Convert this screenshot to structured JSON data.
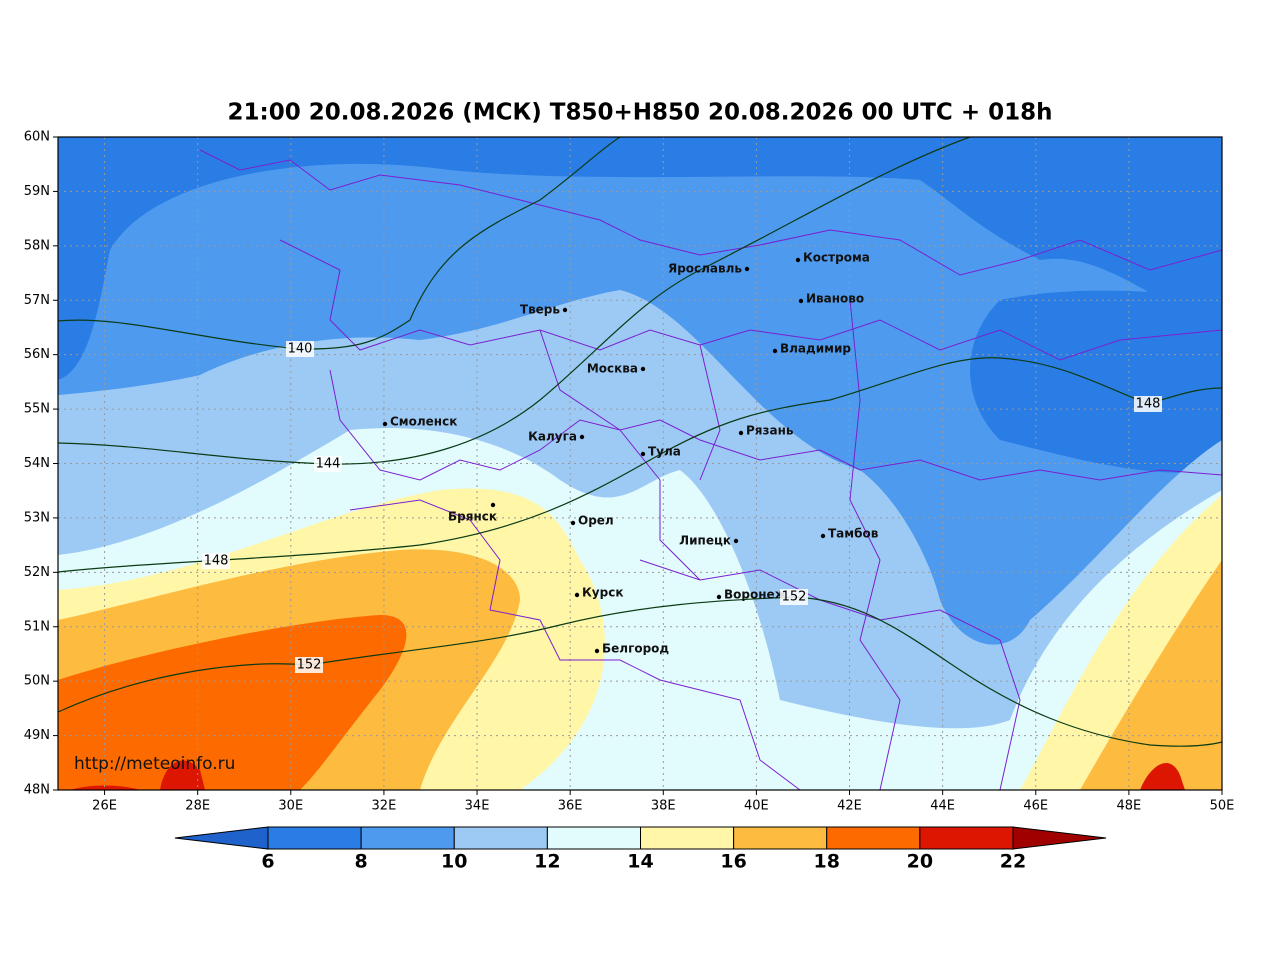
{
  "title": "21:00 20.08.2026 (МСК) T850+H850 20.08.2026 00 UTC + 018h",
  "map": {
    "xlim": [
      25,
      50
    ],
    "ylim": [
      48,
      60
    ],
    "xticks": [
      {
        "value": 26,
        "label": "26E"
      },
      {
        "value": 28,
        "label": "28E"
      },
      {
        "value": 30,
        "label": "30E"
      },
      {
        "value": 32,
        "label": "32E"
      },
      {
        "value": 34,
        "label": "34E"
      },
      {
        "value": 36,
        "label": "36E"
      },
      {
        "value": 38,
        "label": "38E"
      },
      {
        "value": 40,
        "label": "40E"
      },
      {
        "value": 42,
        "label": "42E"
      },
      {
        "value": 44,
        "label": "44E"
      },
      {
        "value": 46,
        "label": "46E"
      },
      {
        "value": 48,
        "label": "48E"
      },
      {
        "value": 50,
        "label": "50E"
      }
    ],
    "yticks": [
      {
        "value": 48,
        "label": "48N"
      },
      {
        "value": 49,
        "label": "49N"
      },
      {
        "value": 50,
        "label": "50N"
      },
      {
        "value": 51,
        "label": "51N"
      },
      {
        "value": 52,
        "label": "52N"
      },
      {
        "value": 53,
        "label": "53N"
      },
      {
        "value": 54,
        "label": "54N"
      },
      {
        "value": 55,
        "label": "55N"
      },
      {
        "value": 56,
        "label": "56N"
      },
      {
        "value": 57,
        "label": "57N"
      },
      {
        "value": 58,
        "label": "58N"
      },
      {
        "value": 59,
        "label": "59N"
      },
      {
        "value": 60,
        "label": "60N"
      }
    ],
    "cities": [
      "Кострома",
      "Ярославль",
      "Иваново",
      "Тверь",
      "Москва",
      "Владимир",
      "Смоленск",
      "Калуга",
      "Рязань",
      "Тула",
      "Брянск",
      "Орел",
      "Липецк",
      "Тамбов",
      "Курск",
      "Воронеж",
      "Белгород"
    ],
    "contour_labels": [
      140,
      144,
      148,
      148,
      152,
      152
    ],
    "watermark": "http://meteoinfo.ru"
  },
  "colorbar": {
    "ticks": [
      6,
      8,
      10,
      12,
      14,
      16,
      18,
      20,
      22
    ],
    "colors": [
      "#1f62cc",
      "#2b7de6",
      "#4d9aee",
      "#9dcaf5",
      "#e2fbfd",
      "#fff6a8",
      "#fdbb40",
      "#fd6a00",
      "#dc1600",
      "#a00000"
    ]
  }
}
